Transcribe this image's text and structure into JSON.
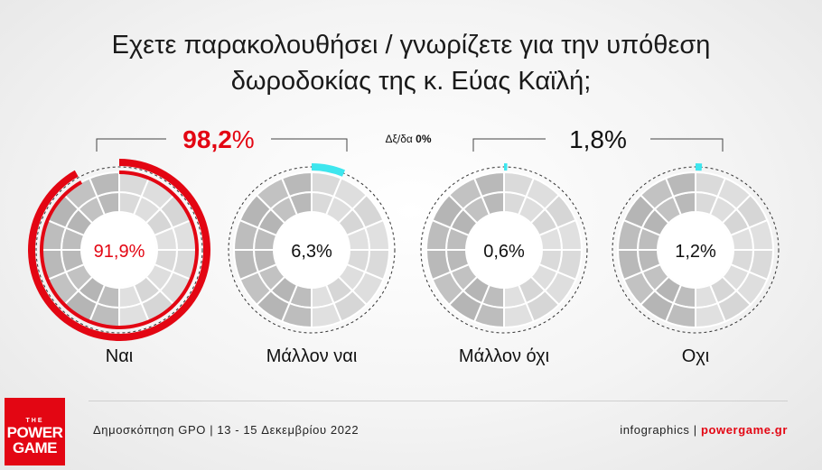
{
  "title": {
    "line1": "Εχετε παρακολουθήσει / γνωρίζετε για την υπόθεση",
    "line2": "δωροδοκίας της κ. Εύας Καϊλή;"
  },
  "chart_data": {
    "type": "donut",
    "title": "Εχετε παρακολουθήσει / γνωρίζετε για την υπόθεση δωροδοκίας της κ. Εύας Καϊλή;",
    "categories": [
      "Ναι",
      "Μάλλον ναι",
      "Μάλλον όχι",
      "Οχι"
    ],
    "values": [
      91.9,
      6.3,
      0.6,
      1.2
    ],
    "value_labels": [
      "91,9%",
      "6,3%",
      "0,6%",
      "1,2%"
    ],
    "unit": "%",
    "groups": [
      {
        "label": "98,2%",
        "members": [
          "Ναι",
          "Μάλλον ναι"
        ],
        "color": "#e30613"
      },
      {
        "label": "1,8%",
        "members": [
          "Μάλλον όχι",
          "Οχι"
        ],
        "color": "#111111"
      }
    ],
    "dont_know": {
      "label": "Δξ/δα",
      "value": "0%"
    },
    "colors": [
      "#e30613",
      "#3ee6ee",
      "#3ee6ee",
      "#3ee6ee"
    ]
  },
  "footer": {
    "source": "Δημοσκόπηση GPO | 13 - 15 Δεκεμβρίου 2022",
    "infographics": "infographics | ",
    "site": "powergame.gr"
  },
  "logo": {
    "top": "THE",
    "line1": "POWER",
    "line2": "GAME"
  }
}
